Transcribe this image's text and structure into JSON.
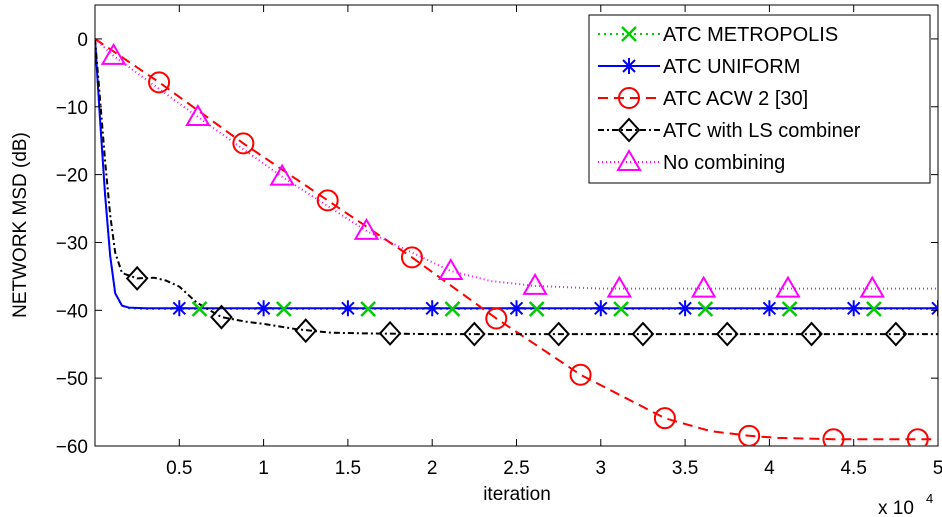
{
  "chart_data": {
    "type": "line",
    "title": "",
    "xlabel": "iteration",
    "ylabel": "NETWORK MSD (dB)",
    "x_multiplier_label": "x 10",
    "x_multiplier_exponent": "4",
    "xlim": [
      0,
      50000
    ],
    "ylim": [
      -60,
      5
    ],
    "grid": false,
    "legend_position": "top-right",
    "x_ticks": [
      5000,
      10000,
      15000,
      20000,
      25000,
      30000,
      35000,
      40000,
      45000,
      50000
    ],
    "x_tick_labels": [
      "0.5",
      "1",
      "1.5",
      "2",
      "2.5",
      "3",
      "3.5",
      "4",
      "4.5",
      "5"
    ],
    "y_ticks": [
      0,
      -10,
      -20,
      -30,
      -40,
      -50,
      -60
    ],
    "y_tick_labels": [
      "0",
      "−10",
      "−20",
      "−30",
      "−40",
      "−50",
      "−60"
    ],
    "series": [
      {
        "name": "ATC METROPOLIS",
        "color": "#00cc00",
        "dash": "2,4",
        "marker": "x",
        "x": [
          0,
          300,
          600,
          900,
          1200,
          1600,
          2000,
          3000,
          5000,
          10000,
          20000,
          30000,
          40000,
          50000
        ],
        "y": [
          0,
          -12,
          -23,
          -32,
          -37.5,
          -39.3,
          -39.7,
          -39.8,
          -39.8,
          -39.8,
          -39.8,
          -39.8,
          -39.8,
          -39.8
        ],
        "markers_x": [
          6200,
          11200,
          16200,
          21200,
          26200,
          31200,
          36200,
          41200,
          46200
        ],
        "markers_y": [
          -39.8,
          -39.8,
          -39.8,
          -39.8,
          -39.8,
          -39.8,
          -39.8,
          -39.8,
          -39.8
        ]
      },
      {
        "name": "ATC UNIFORM",
        "color": "#0000ff",
        "dash": "",
        "marker": "star",
        "x": [
          0,
          300,
          600,
          900,
          1200,
          1600,
          2000,
          3000,
          5000,
          10000,
          20000,
          30000,
          40000,
          50000
        ],
        "y": [
          0,
          -12,
          -23,
          -32,
          -37.5,
          -39.3,
          -39.6,
          -39.7,
          -39.7,
          -39.7,
          -39.7,
          -39.7,
          -39.7,
          -39.7
        ],
        "markers_x": [
          5000,
          10000,
          15000,
          20000,
          25000,
          30000,
          35000,
          40000,
          45000,
          50000
        ],
        "markers_y": [
          -39.7,
          -39.7,
          -39.7,
          -39.7,
          -39.7,
          -39.7,
          -39.7,
          -39.7,
          -39.7,
          -39.7
        ]
      },
      {
        "name": "ATC ACW 2 [30]",
        "color": "#ff0000",
        "dash": "10,6",
        "marker": "circle",
        "x": [
          0,
          3800,
          8800,
          13800,
          18800,
          23800,
          28800,
          33800,
          36500,
          38800,
          40500,
          43800,
          48800,
          50000
        ],
        "y": [
          0,
          -6.4,
          -15.4,
          -23.8,
          -32.2,
          -41.2,
          -49.5,
          -55.9,
          -57.8,
          -58.5,
          -58.8,
          -59,
          -59,
          -59
        ],
        "markers_x": [
          3800,
          8800,
          13800,
          18800,
          23800,
          28800,
          33800,
          38800,
          43800,
          48800
        ],
        "markers_y": [
          -6.4,
          -15.4,
          -23.8,
          -32.2,
          -41.2,
          -49.5,
          -55.9,
          -58.5,
          -59,
          -59
        ]
      },
      {
        "name": "ATC with LS combiner",
        "color": "#000000",
        "dash": "6,3,2,3",
        "marker": "diamond",
        "x": [
          0,
          300,
          600,
          900,
          1200,
          1600,
          2500,
          3500,
          4200,
          5000,
          6000,
          7500,
          9000,
          10000,
          12000,
          14000,
          16000,
          20000,
          30000,
          40000,
          50000
        ],
        "y": [
          0,
          -9,
          -18,
          -26,
          -31.5,
          -34.5,
          -35.3,
          -35.2,
          -35.6,
          -36.5,
          -38.8,
          -41,
          -41.7,
          -42,
          -42.8,
          -43.3,
          -43.4,
          -43.5,
          -43.5,
          -43.5,
          -43.5
        ],
        "markers_x": [
          2500,
          7500,
          12500,
          17500,
          22500,
          27500,
          32500,
          37500,
          42500,
          47500
        ],
        "markers_y": [
          -35.3,
          -41,
          -43,
          -43.4,
          -43.5,
          -43.5,
          -43.5,
          -43.5,
          -43.5,
          -43.5
        ]
      },
      {
        "name": "No combining",
        "color": "#ff00ff",
        "dash": "1,3",
        "marker": "triangle",
        "x": [
          0,
          1100,
          6100,
          11100,
          16100,
          21100,
          23500,
          26100,
          30000,
          35000,
          40000,
          45000,
          50000
        ],
        "y": [
          0,
          -2.5,
          -11.5,
          -20.3,
          -28.3,
          -34.2,
          -35.7,
          -36.4,
          -36.8,
          -36.8,
          -36.8,
          -36.8,
          -36.8
        ],
        "markers_x": [
          1100,
          6100,
          11100,
          16100,
          21100,
          26100,
          31100,
          36100,
          41100,
          46100
        ],
        "markers_y": [
          -2.5,
          -11.5,
          -20.3,
          -28.3,
          -34.2,
          -36.4,
          -36.8,
          -36.8,
          -36.8,
          -36.8
        ]
      }
    ]
  }
}
